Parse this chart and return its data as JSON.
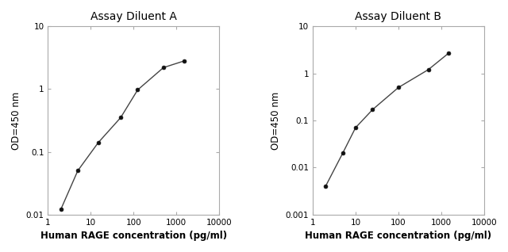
{
  "panel_A": {
    "title": "Assay Diluent A",
    "x": [
      2,
      5,
      15,
      50,
      125,
      500,
      1500
    ],
    "y": [
      0.012,
      0.05,
      0.14,
      0.35,
      0.97,
      2.2,
      2.8
    ],
    "xlim": [
      1,
      10000
    ],
    "ylim": [
      0.01,
      10
    ],
    "xlabel": "Human RAGE concentration (pg/ml)",
    "ylabel": "OD=450 nm",
    "xticks": [
      1,
      10,
      100,
      1000,
      10000
    ],
    "yticks": [
      0.01,
      0.1,
      1,
      10
    ],
    "ytick_labels": [
      "0.01",
      "0.1",
      "1",
      "10"
    ],
    "xtick_labels": [
      "1",
      "10",
      "100",
      "1000",
      "10000"
    ]
  },
  "panel_B": {
    "title": "Assay Diluent B",
    "x": [
      2,
      5,
      10,
      25,
      100,
      500,
      1500
    ],
    "y": [
      0.004,
      0.02,
      0.07,
      0.17,
      0.5,
      1.2,
      2.7
    ],
    "xlim": [
      1,
      10000
    ],
    "ylim": [
      0.001,
      10
    ],
    "xlabel": "Human RAGE concentration (pg/ml)",
    "ylabel": "OD=450 nm",
    "xticks": [
      1,
      10,
      100,
      1000,
      10000
    ],
    "yticks": [
      0.001,
      0.01,
      0.1,
      1,
      10
    ],
    "ytick_labels": [
      "0.001",
      "0.01",
      "0.1",
      "1",
      "10"
    ],
    "xtick_labels": [
      "1",
      "10",
      "100",
      "1000",
      "10000"
    ]
  },
  "line_color": "#444444",
  "marker_color": "#111111",
  "spine_color": "#aaaaaa",
  "background_color": "#ffffff",
  "title_fontsize": 10,
  "label_fontsize": 8.5,
  "tick_fontsize": 7.5
}
